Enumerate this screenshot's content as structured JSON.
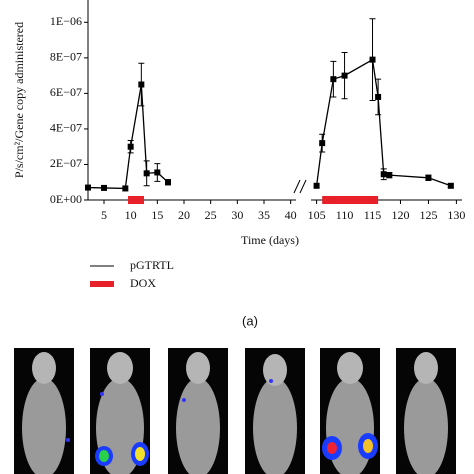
{
  "chart_data": {
    "type": "line",
    "y_label": "P/s/cm²/Gene copy administered",
    "x_label": "Time (days)",
    "caption": "(a)",
    "ylim": [
      0,
      1.12e-06
    ],
    "yticks": [
      {
        "value": 0,
        "label": "0E+00"
      },
      {
        "value": 2e-07,
        "label": "2E−07"
      },
      {
        "value": 4e-07,
        "label": "4E−07"
      },
      {
        "value": 6e-07,
        "label": "6E−07"
      },
      {
        "value": 8e-07,
        "label": "8E−07"
      },
      {
        "value": 1e-06,
        "label": "1E−06"
      }
    ],
    "segments": [
      {
        "xlim": [
          2,
          41
        ],
        "xticks": [
          5,
          10,
          15,
          20,
          25,
          30,
          35,
          40
        ]
      },
      {
        "xlim": [
          104,
          131
        ],
        "xticks": [
          105,
          110,
          115,
          120,
          125,
          130
        ]
      }
    ],
    "x": [
      2,
      5,
      9,
      10,
      12,
      13,
      15,
      17,
      null,
      105,
      106,
      108,
      110,
      115,
      116,
      117,
      118,
      125,
      129
    ],
    "series": [
      {
        "name": "pGTRTL",
        "color": "#000000",
        "values": [
          7e-08,
          6.8e-08,
          6.5e-08,
          3e-07,
          6.5e-07,
          1.5e-07,
          1.55e-07,
          1e-07,
          null,
          8e-08,
          3.2e-07,
          6.8e-07,
          7e-07,
          7.9e-07,
          5.8e-07,
          1.45e-07,
          1.4e-07,
          1.25e-07,
          8e-08
        ],
        "errors": [
          null,
          null,
          null,
          3.5e-08,
          1.2e-07,
          7e-08,
          5e-08,
          1.5e-08,
          null,
          null,
          5e-08,
          1e-07,
          1.3e-07,
          2.3e-07,
          1e-07,
          3e-08,
          1.5e-08,
          1.5e-08,
          1e-08
        ]
      },
      {
        "name": "DOX",
        "color": "#e8202a",
        "intervals": [
          [
            9.5,
            12.5
          ],
          [
            106,
            116
          ]
        ]
      }
    ]
  }
}
